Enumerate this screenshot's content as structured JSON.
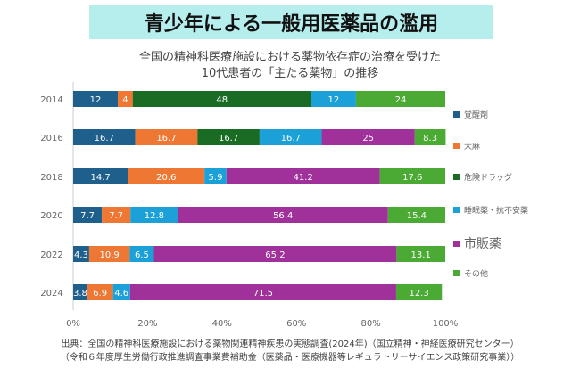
{
  "chart_data": {
    "type": "bar",
    "orientation": "horizontal-stacked-100",
    "title": "青少年による一般用医薬品の濫用",
    "subtitle": [
      "全国の精神科医療施設における薬物依存症の治療を受けた",
      "10代患者の「主たる薬物」の推移"
    ],
    "categories": [
      "2014",
      "2016",
      "2018",
      "2020",
      "2022",
      "2024"
    ],
    "series": [
      {
        "name": "覚醒剤",
        "color": "#1f5f8b",
        "values": [
          12,
          16.7,
          14.7,
          7.7,
          4.3,
          3.8
        ]
      },
      {
        "name": "大麻",
        "color": "#ee7733",
        "values": [
          4,
          16.7,
          20.6,
          7.7,
          10.9,
          6.9
        ]
      },
      {
        "name": "危険ドラッグ",
        "color": "#1a6b24",
        "values": [
          48,
          16.7,
          0,
          0,
          0,
          0
        ]
      },
      {
        "name": "睡眠薬・抗不安薬",
        "color": "#1ba1d8",
        "values": [
          12,
          16.7,
          5.9,
          12.8,
          6.5,
          4.6
        ]
      },
      {
        "name": "市販薬",
        "color": "#a0309a",
        "values": [
          0,
          25,
          41.2,
          56.4,
          65.2,
          71.5
        ]
      },
      {
        "name": "その他",
        "color": "#4aaa34",
        "values": [
          24,
          8.3,
          17.6,
          15.4,
          13.1,
          12.3
        ]
      }
    ],
    "xticks": [
      "0%",
      "20%",
      "40%",
      "60%",
      "80%",
      "100%"
    ],
    "xlim": [
      0,
      100
    ],
    "legend": "right",
    "grid": false
  },
  "source": [
    "出典：全国の精神科医療施設における薬物関連精神疾患の実態調査(2024年)（国立精神・神経医療研究センター）",
    "（令和６年度厚生労働行政推進調査事業費補助金（医薬品・医療機器等レギュラトリーサイエンス政策研究事業））"
  ]
}
